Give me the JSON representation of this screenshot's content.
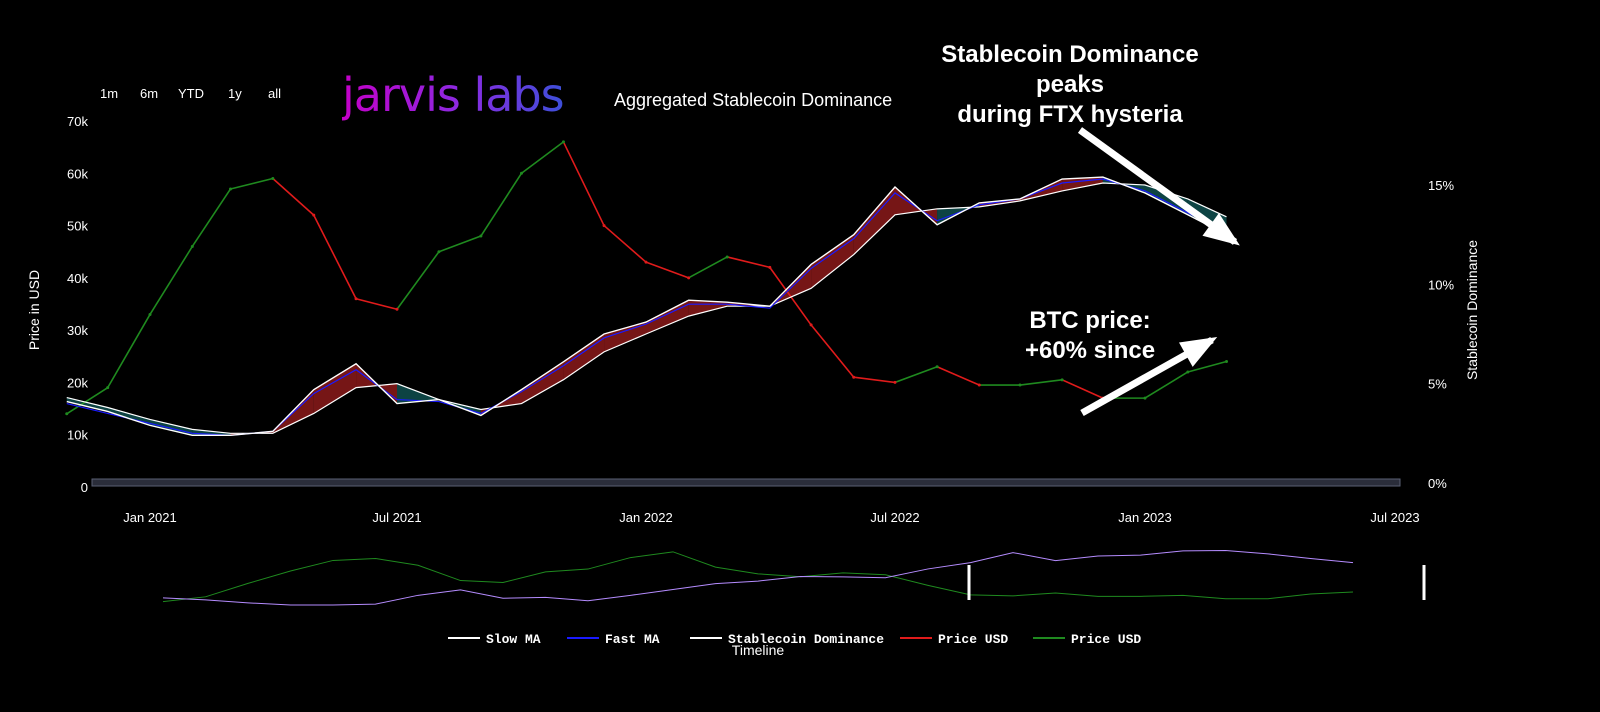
{
  "range_buttons": [
    "1m",
    "6m",
    "YTD",
    "1y",
    "all"
  ],
  "logo_text": "jarvis labs",
  "chart_title": "Aggregated Stablecoin Dominance",
  "annotations": {
    "top_line1": "Stablecoin Dominance",
    "top_line2": "peaks",
    "top_line3": "during FTX hysteria",
    "bottom_line1": "BTC price:",
    "bottom_line2": "+60% since"
  },
  "colors": {
    "price_up": "#1f8a1f",
    "price_down": "#e01b1b",
    "stablecoin_line": "#ffffff",
    "fast_ma": "#1a1aff",
    "slow_ma": "#ffffff",
    "fill_up": "#8b1a1a",
    "fill_down": "#0f4f4f"
  },
  "chart_data": {
    "type": "line",
    "xlabel": "Timeline",
    "ylabel_left": "Price in USD",
    "ylabel_right": "Stablecoin Dominance",
    "x_ticks": [
      "Jan 2021",
      "Jul 2021",
      "Jan 2022",
      "Jul 2022",
      "Jan 2023",
      "Jul 2023"
    ],
    "y_left_ticks": [
      "0",
      "10k",
      "20k",
      "30k",
      "40k",
      "50k",
      "60k",
      "70k"
    ],
    "y_left_range": [
      0,
      70000
    ],
    "y_right_ticks": [
      "0%",
      "5%",
      "10%",
      "15%"
    ],
    "y_right_range": [
      0,
      15
    ],
    "legend": [
      "Slow MA",
      "Fast MA",
      "Stablecoin Dominance",
      "Price USD",
      "Price USD"
    ],
    "legend_placement": "bottom",
    "x_dates": [
      "2020-11-01",
      "2020-12-01",
      "2021-01-01",
      "2021-02-01",
      "2021-03-01",
      "2021-04-01",
      "2021-05-01",
      "2021-06-01",
      "2021-07-01",
      "2021-08-01",
      "2021-09-01",
      "2021-10-01",
      "2021-11-01",
      "2021-12-01",
      "2022-01-01",
      "2022-02-01",
      "2022-03-01",
      "2022-04-01",
      "2022-05-01",
      "2022-06-01",
      "2022-07-01",
      "2022-08-01",
      "2022-09-01",
      "2022-10-01",
      "2022-11-01",
      "2022-12-01",
      "2023-01-01",
      "2023-02-01",
      "2023-03-01"
    ],
    "series": [
      {
        "name": "Price USD",
        "values": [
          14000,
          19000,
          33000,
          46000,
          57000,
          59000,
          52000,
          36000,
          34000,
          45000,
          48000,
          60000,
          66000,
          50000,
          43000,
          40000,
          44000,
          42000,
          31000,
          21000,
          20000,
          23000,
          19500,
          19500,
          20500,
          17000,
          17000,
          22000,
          24000
        ]
      },
      {
        "name": "Stablecoin Dominance",
        "values": [
          4.1,
          3.6,
          2.9,
          2.4,
          2.4,
          2.6,
          4.7,
          6.0,
          4.0,
          4.2,
          3.4,
          4.7,
          6.1,
          7.5,
          8.1,
          9.2,
          9.1,
          8.9,
          11.0,
          12.5,
          14.9,
          13.0,
          14.1,
          14.3,
          15.3,
          15.4,
          14.6,
          13.5,
          12.5
        ]
      },
      {
        "name": "Fast MA",
        "values": [
          4.0,
          3.5,
          3.0,
          2.5,
          2.4,
          2.6,
          4.5,
          5.7,
          4.2,
          4.1,
          3.5,
          4.6,
          5.9,
          7.3,
          8.0,
          9.0,
          9.0,
          8.8,
          10.8,
          12.3,
          14.6,
          13.2,
          14.0,
          14.3,
          15.1,
          15.3,
          14.7,
          13.6,
          12.6
        ]
      },
      {
        "name": "Slow MA",
        "values": [
          4.3,
          3.8,
          3.2,
          2.7,
          2.5,
          2.5,
          3.5,
          4.8,
          5.0,
          4.2,
          3.7,
          4.0,
          5.2,
          6.6,
          7.5,
          8.4,
          8.9,
          8.9,
          9.8,
          11.5,
          13.5,
          13.8,
          13.9,
          14.2,
          14.7,
          15.1,
          15.0,
          14.3,
          13.4
        ]
      }
    ]
  }
}
